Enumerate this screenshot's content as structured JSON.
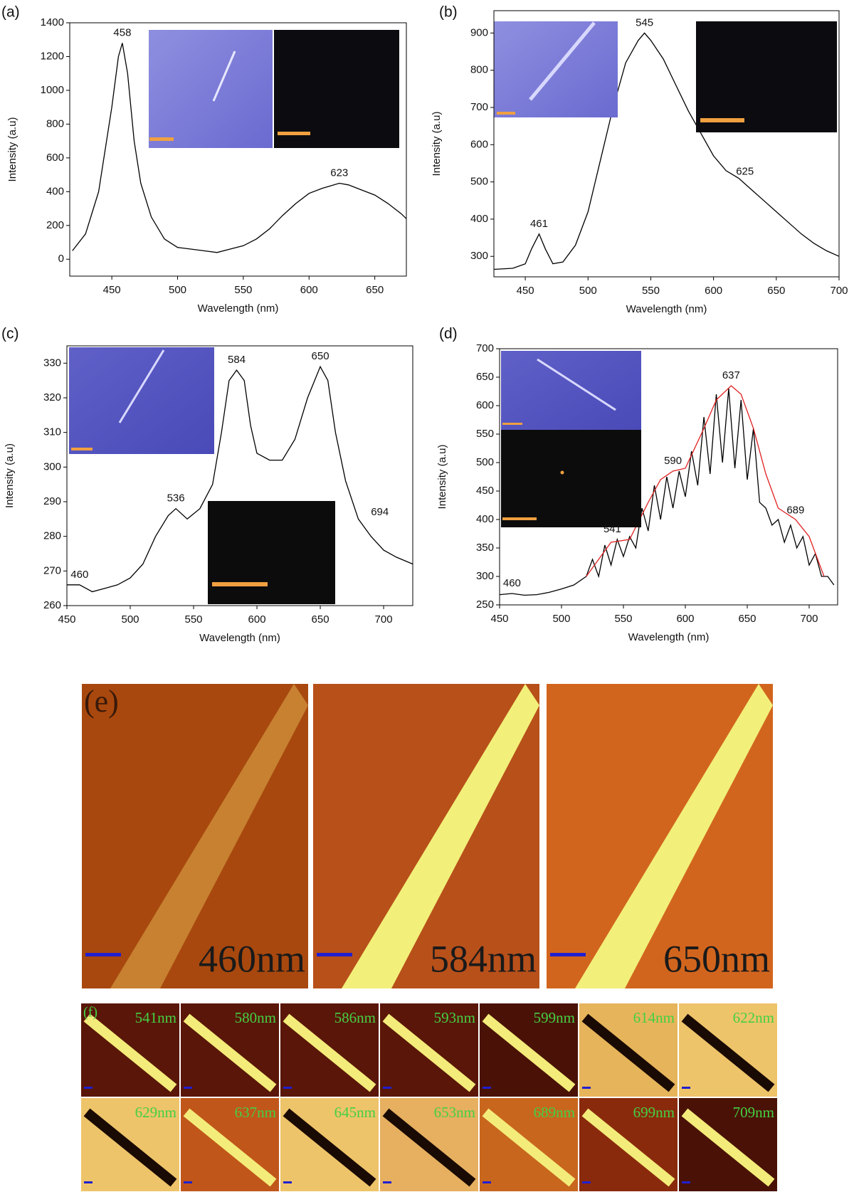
{
  "chart_data": [
    {
      "type": "line",
      "panel_label": "(a)",
      "x_label": "Wavelength (nm)",
      "y_label": "Intensity (a.u)",
      "xlim": [
        418,
        674
      ],
      "ylim": [
        -100,
        1400
      ],
      "xticks": [
        450,
        500,
        550,
        600,
        650
      ],
      "yticks": [
        0,
        200,
        400,
        600,
        800,
        1000,
        1200,
        1400
      ],
      "series": [
        {
          "color": "#000000",
          "x": [
            420,
            430,
            440,
            450,
            455,
            458,
            462,
            467,
            472,
            480,
            490,
            500,
            510,
            520,
            530,
            540,
            550,
            560,
            570,
            580,
            590,
            600,
            610,
            623,
            630,
            640,
            650,
            660,
            670,
            674
          ],
          "values": [
            50,
            150,
            400,
            900,
            1200,
            1280,
            1100,
            700,
            450,
            250,
            120,
            70,
            60,
            50,
            40,
            60,
            80,
            120,
            180,
            260,
            330,
            390,
            420,
            450,
            440,
            410,
            380,
            330,
            270,
            240
          ]
        }
      ],
      "annotations": [
        {
          "text": "458",
          "x": 458,
          "y": 1280
        },
        {
          "text": "623",
          "x": 623,
          "y": 450
        }
      ]
    },
    {
      "type": "line",
      "panel_label": "(b)",
      "x_label": "Wavelength (nm)",
      "y_label": "Intensity (a.u)",
      "xlim": [
        425,
        700
      ],
      "ylim": [
        245,
        960
      ],
      "xticks": [
        450,
        500,
        550,
        600,
        650,
        700
      ],
      "yticks": [
        300,
        400,
        500,
        600,
        700,
        800,
        900
      ],
      "series": [
        {
          "color": "#000000",
          "x": [
            425,
            440,
            450,
            455,
            461,
            466,
            472,
            480,
            490,
            500,
            510,
            520,
            530,
            540,
            545,
            550,
            560,
            570,
            580,
            590,
            600,
            610,
            620,
            630,
            640,
            650,
            660,
            670,
            680,
            690,
            700
          ],
          "values": [
            265,
            268,
            280,
            320,
            360,
            320,
            280,
            285,
            330,
            420,
            560,
            700,
            820,
            880,
            900,
            880,
            830,
            760,
            690,
            630,
            570,
            530,
            510,
            480,
            450,
            420,
            390,
            360,
            335,
            315,
            300
          ]
        }
      ],
      "annotations": [
        {
          "text": "461",
          "x": 461,
          "y": 360
        },
        {
          "text": "545",
          "x": 545,
          "y": 900
        },
        {
          "text": "625",
          "x": 625,
          "y": 500
        }
      ]
    },
    {
      "type": "line",
      "panel_label": "(c)",
      "x_label": "Wavelength (nm)",
      "y_label": "Intensity (a.u)",
      "xlim": [
        450,
        723
      ],
      "ylim": [
        260,
        335
      ],
      "xticks": [
        450,
        500,
        550,
        600,
        650,
        700
      ],
      "yticks": [
        260,
        270,
        280,
        290,
        300,
        310,
        320,
        330
      ],
      "series": [
        {
          "color": "#000000",
          "x": [
            450,
            460,
            470,
            480,
            490,
            500,
            510,
            520,
            530,
            536,
            545,
            555,
            565,
            572,
            578,
            584,
            590,
            595,
            600,
            610,
            620,
            630,
            640,
            650,
            656,
            662,
            670,
            680,
            690,
            700,
            710,
            723
          ],
          "values": [
            266,
            266,
            264,
            265,
            266,
            268,
            272,
            280,
            286,
            288,
            285,
            288,
            295,
            310,
            325,
            328,
            325,
            312,
            304,
            302,
            302,
            308,
            320,
            329,
            325,
            310,
            296,
            285,
            280,
            276,
            274,
            272
          ]
        }
      ],
      "annotations": [
        {
          "text": "460",
          "x": 460,
          "y": 266
        },
        {
          "text": "536",
          "x": 536,
          "y": 288
        },
        {
          "text": "584",
          "x": 584,
          "y": 328
        },
        {
          "text": "650",
          "x": 650,
          "y": 329
        },
        {
          "text": "694",
          "x": 697,
          "y": 284
        }
      ]
    },
    {
      "type": "line",
      "panel_label": "(d)",
      "x_label": "Wavelength (nm)",
      "y_label": "Intensity (a.u)",
      "xlim": [
        450,
        723
      ],
      "ylim": [
        250,
        700
      ],
      "xticks": [
        450,
        500,
        550,
        600,
        650,
        700
      ],
      "yticks": [
        250,
        300,
        350,
        400,
        450,
        500,
        550,
        600,
        650,
        700
      ],
      "series": [
        {
          "color": "#000000",
          "x": [
            450,
            460,
            470,
            480,
            490,
            500,
            510,
            520,
            525,
            530,
            535,
            540,
            545,
            550,
            555,
            560,
            565,
            570,
            575,
            580,
            585,
            590,
            595,
            600,
            605,
            610,
            615,
            620,
            625,
            630,
            635,
            640,
            645,
            650,
            655,
            660,
            665,
            670,
            675,
            680,
            685,
            690,
            695,
            700,
            705,
            710,
            715,
            720
          ],
          "values": [
            268,
            270,
            267,
            268,
            272,
            278,
            285,
            300,
            330,
            300,
            355,
            320,
            365,
            335,
            370,
            350,
            420,
            380,
            460,
            400,
            475,
            420,
            485,
            440,
            520,
            460,
            580,
            480,
            620,
            500,
            630,
            490,
            610,
            470,
            560,
            430,
            420,
            390,
            400,
            360,
            390,
            350,
            370,
            320,
            340,
            300,
            300,
            285
          ]
        },
        {
          "color": "#e02020",
          "x": [
            520,
            540,
            555,
            570,
            580,
            590,
            600,
            615,
            625,
            637,
            645,
            655,
            665,
            675,
            689,
            700,
            712
          ],
          "values": [
            300,
            360,
            365,
            430,
            470,
            485,
            490,
            560,
            610,
            635,
            620,
            560,
            480,
            420,
            400,
            370,
            300
          ]
        }
      ],
      "annotations": [
        {
          "text": "460",
          "x": 460,
          "y": 270
        },
        {
          "text": "541",
          "x": 541,
          "y": 365
        },
        {
          "text": "590",
          "x": 590,
          "y": 485
        },
        {
          "text": "637",
          "x": 637,
          "y": 635
        },
        {
          "text": "689",
          "x": 689,
          "y": 398
        }
      ]
    }
  ],
  "images": {
    "e": {
      "label": "(e)",
      "tiles": [
        "460nm",
        "584nm",
        "650nm"
      ]
    },
    "f": {
      "label": "(f)",
      "tiles": [
        "541nm",
        "580nm",
        "586nm",
        "593nm",
        "599nm",
        "614nm",
        "622nm",
        "629nm",
        "637nm",
        "645nm",
        "653nm",
        "689nm",
        "699nm",
        "709nm"
      ]
    }
  }
}
